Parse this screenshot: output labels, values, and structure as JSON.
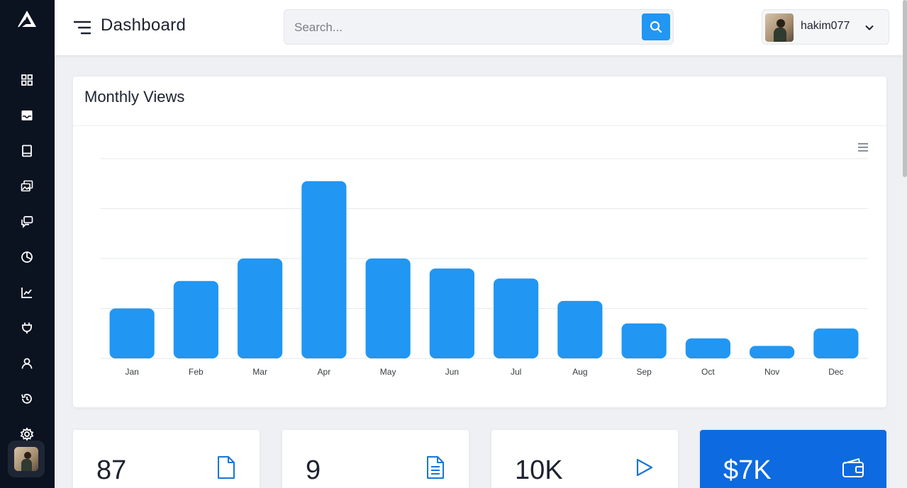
{
  "header": {
    "title": "Dashboard",
    "search_placeholder": "Search...",
    "username": "hakim077"
  },
  "sidebar": {
    "icons": [
      "grid-icon",
      "inbox-icon",
      "book-icon",
      "images-icon",
      "chat-icon",
      "pie-chart-icon",
      "line-chart-icon",
      "plug-icon",
      "user-icon",
      "history-icon",
      "settings-icon"
    ]
  },
  "colors": {
    "sidebar": "#0b1220",
    "accent": "#2196f3",
    "accent_dark": "#0d6ae0"
  },
  "chart_card": {
    "title": "Monthly Views"
  },
  "chart_data": {
    "type": "bar",
    "title": "",
    "categories": [
      "Jan",
      "Feb",
      "Mar",
      "Apr",
      "May",
      "Jun",
      "Jul",
      "Aug",
      "Sep",
      "Oct",
      "Nov",
      "Dec"
    ],
    "values": [
      100,
      155,
      200,
      355,
      200,
      180,
      160,
      115,
      70,
      40,
      25,
      60
    ],
    "ylim": [
      0,
      400
    ],
    "grid": true,
    "bar_color": "#2196f3"
  },
  "stats": [
    {
      "value": "87",
      "icon": "file-icon"
    },
    {
      "value": "9",
      "icon": "document-icon"
    },
    {
      "value": "10K",
      "icon": "play-icon"
    },
    {
      "value": "$7K",
      "icon": "wallet-icon"
    }
  ]
}
